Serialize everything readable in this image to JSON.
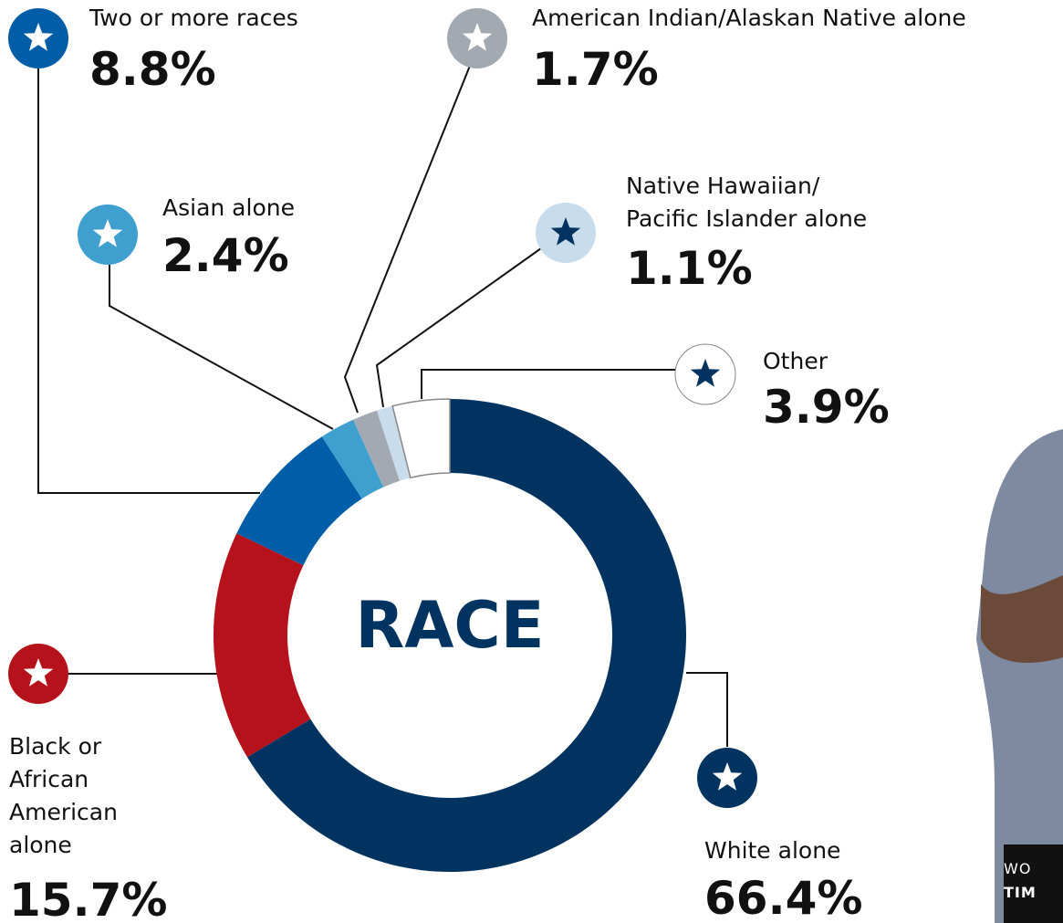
{
  "chart_data": {
    "type": "donut",
    "title": "RACE",
    "categories": [
      "White alone",
      "Black or\nAfrican\nAmerican\nalone",
      "Two or more races",
      "Asian alone",
      "American Indian/Alaskan Native alone",
      "Native Hawaiian/\nPacific Islander alone",
      "Other"
    ],
    "values": [
      66.4,
      15.7,
      8.8,
      2.4,
      1.7,
      1.1,
      3.9
    ],
    "value_labels": [
      "66.4%",
      "15.7%",
      "8.8%",
      "2.4%",
      "1.7%",
      "1.1%",
      "3.9%"
    ],
    "colors": [
      "#00335f",
      "#b5121b",
      "#005ea8",
      "#3fa0d0",
      "#a2a9b1",
      "#c8dcec",
      "#ffffff"
    ]
  },
  "photo_caption": [
    "WO",
    "TIM"
  ]
}
